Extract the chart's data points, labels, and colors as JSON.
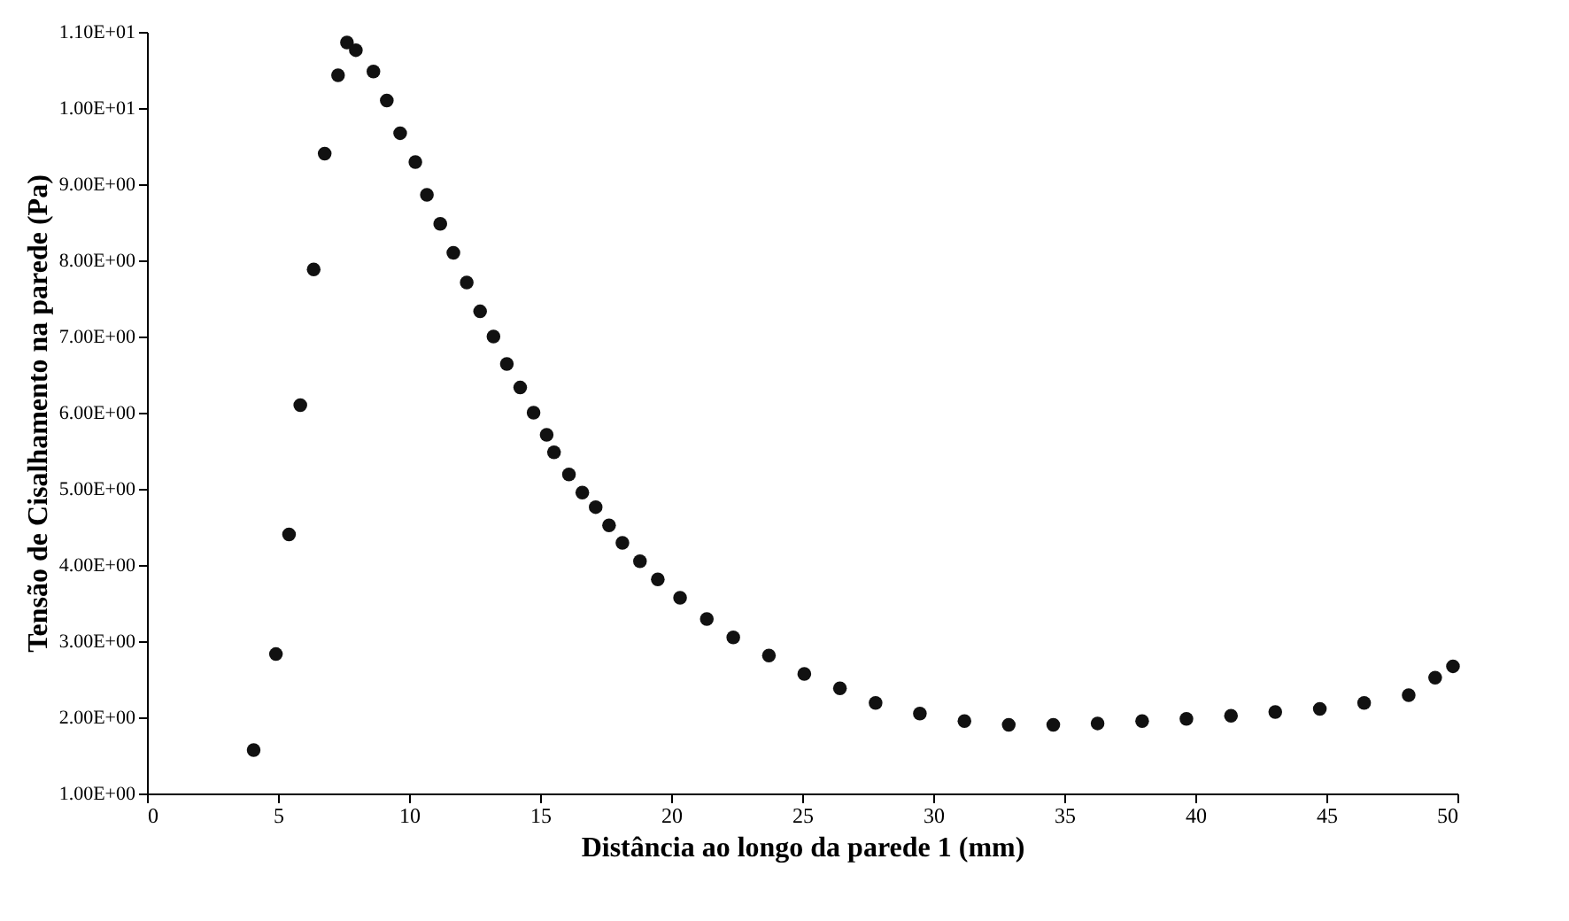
{
  "chart_data": {
    "type": "scatter",
    "xlabel": "Distância ao longo da parede 1 (mm)",
    "ylabel": "Tensão de Cisalhamento na parede (Pa)",
    "xlim": [
      0,
      50
    ],
    "xticks": [
      0,
      5,
      10,
      15,
      20,
      25,
      30,
      35,
      40,
      45,
      50
    ],
    "ylim": [
      1,
      11
    ],
    "yticks": [
      {
        "value": 1,
        "label": "1.00E+00"
      },
      {
        "value": 2,
        "label": "2.00E+00"
      },
      {
        "value": 3,
        "label": "3.00E+00"
      },
      {
        "value": 4,
        "label": "4.00E+00"
      },
      {
        "value": 5,
        "label": "5.00E+00"
      },
      {
        "value": 6,
        "label": "6.00E+00"
      },
      {
        "value": 7,
        "label": "7.00E+00"
      },
      {
        "value": 8,
        "label": "8.00E+00"
      },
      {
        "value": 9,
        "label": "9.00E+00"
      },
      {
        "value": 10,
        "label": "1.00E+01"
      },
      {
        "value": 11,
        "label": "1.10E+01"
      }
    ],
    "grid": false,
    "marker": "circle",
    "series": [
      {
        "color": "#111111",
        "x": [
          4.07,
          4.92,
          5.42,
          5.85,
          6.36,
          6.78,
          7.29,
          7.63,
          7.97,
          8.64,
          9.15,
          9.66,
          10.24,
          10.68,
          11.19,
          11.69,
          12.2,
          12.71,
          13.22,
          13.73,
          14.24,
          14.75,
          15.25,
          15.53,
          16.1,
          16.61,
          17.12,
          17.63,
          18.14,
          18.81,
          19.49,
          20.34,
          21.36,
          22.37,
          23.73,
          25.08,
          26.44,
          27.8,
          29.49,
          31.19,
          32.88,
          34.58,
          36.27,
          37.97,
          39.66,
          41.36,
          43.05,
          44.75,
          46.44,
          48.14,
          49.15,
          49.83
        ],
        "values": [
          1.57,
          2.83,
          4.4,
          6.1,
          7.88,
          9.4,
          10.43,
          10.86,
          10.76,
          10.48,
          10.1,
          9.67,
          9.29,
          8.86,
          8.48,
          8.1,
          7.71,
          7.33,
          7.0,
          6.64,
          6.33,
          6.0,
          5.71,
          5.48,
          5.19,
          4.95,
          4.76,
          4.52,
          4.29,
          4.05,
          3.81,
          3.57,
          3.29,
          3.05,
          2.81,
          2.57,
          2.38,
          2.19,
          2.05,
          1.95,
          1.9,
          1.9,
          1.92,
          1.95,
          1.98,
          2.02,
          2.07,
          2.11,
          2.19,
          2.29,
          2.52,
          2.67
        ]
      }
    ]
  }
}
